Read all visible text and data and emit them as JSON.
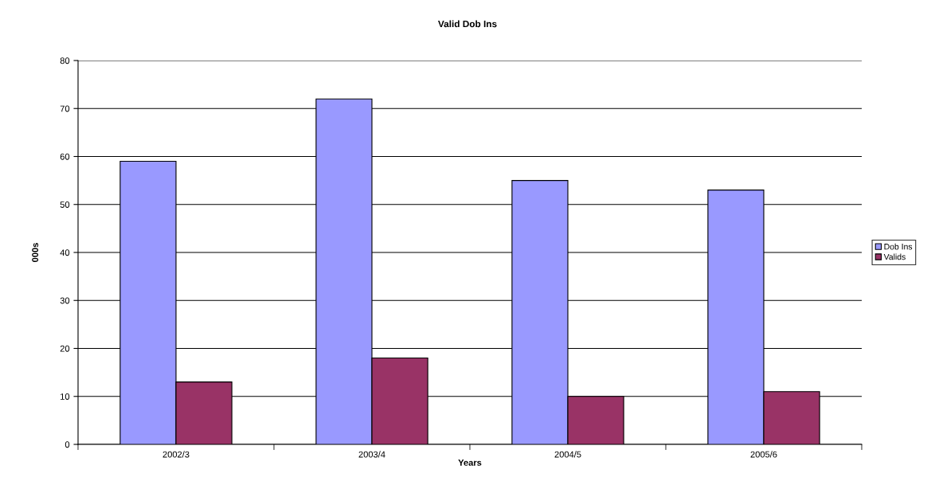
{
  "chart_data": {
    "type": "bar",
    "title": "Valid Dob Ins",
    "xlabel": "Years",
    "ylabel": "000s",
    "categories": [
      "2002/3",
      "2003/4",
      "2004/5",
      "2005/6"
    ],
    "series": [
      {
        "name": "Dob Ins",
        "color": "#9999ff",
        "values": [
          59,
          72,
          55,
          53
        ]
      },
      {
        "name": "Valids",
        "color": "#993366",
        "values": [
          13,
          18,
          10,
          11
        ]
      }
    ],
    "ylim": [
      0,
      80
    ],
    "yticks": [
      0,
      10,
      20,
      30,
      40,
      50,
      60,
      70,
      80
    ],
    "grid": "y",
    "legend": "right"
  }
}
